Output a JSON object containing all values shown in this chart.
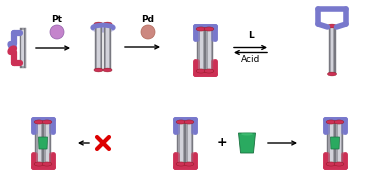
{
  "bg_color": "#ffffff",
  "figsize": [
    3.73,
    1.89
  ],
  "dpi": 100,
  "label_Pt": "Pt",
  "label_Pd": "Pd",
  "label_L": "L",
  "label_Acid": "Acid",
  "label_plus": "+",
  "Pt_color": "#c484cc",
  "Pd_color": "#cc8880",
  "green_color": "#2aaa60",
  "red_cross_color": "#dd0000",
  "bar_gray_light": "#c0c0c8",
  "bar_gray_mid": "#a0a0a8",
  "bar_gray_dark": "#787880",
  "bar_white": "#e8e8f0",
  "cap_red": "#cc3055",
  "ring_blue": "#7878cc",
  "font_size_label": 6.5,
  "font_size_eq": 6.0
}
